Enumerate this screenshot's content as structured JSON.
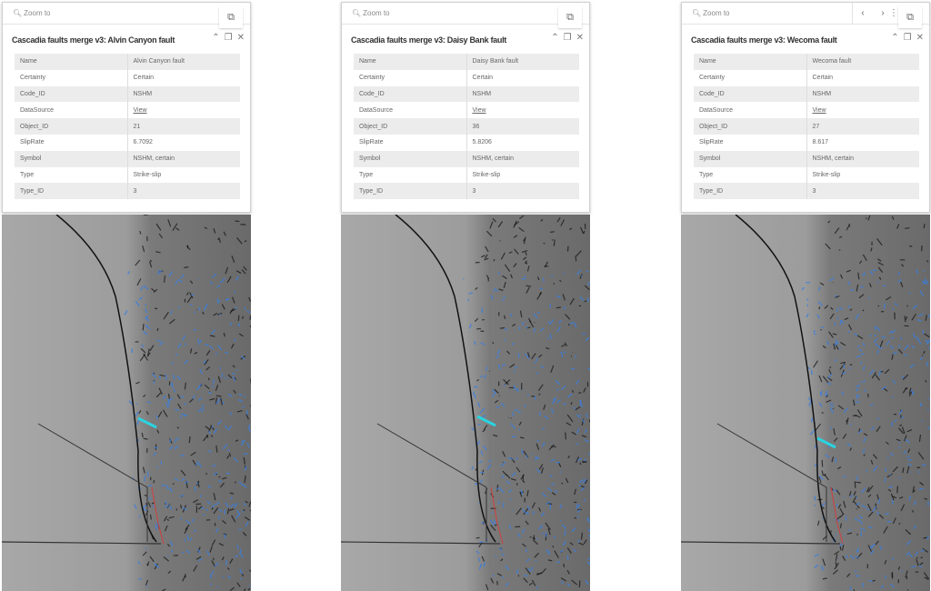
{
  "zoom_label": "Zoom to",
  "icons": {
    "zoom": "magnifier-plus-icon",
    "external": "open-external-icon",
    "collapse": "chevron-up-icon",
    "dock": "dock-icon",
    "close": "close-icon",
    "prev": "chevron-left-icon",
    "next": "chevron-right-icon",
    "more": "more-vertical-icon"
  },
  "colors": {
    "fault_selected": "#2ad4e0",
    "faults": "#3a7fe0",
    "cascadia_trench": "#111111",
    "offshore_faults": "#d04040"
  },
  "field_labels": [
    "Name",
    "Certainty",
    "Code_ID",
    "DataSource",
    "Object_ID",
    "SlipRate",
    "Symbol",
    "Type",
    "Type_ID"
  ],
  "panels": [
    {
      "title": "Cascadia faults merge v3: Alvin Canyon fault",
      "values": [
        "Alvin Canyon fault",
        "Certain",
        "NSHM",
        "View",
        "21",
        "6.7092",
        "NSHM, certain",
        "Strike-slip",
        "3"
      ],
      "has_nav": false
    },
    {
      "title": "Cascadia faults merge v3: Daisy Bank fault",
      "values": [
        "Daisy Bank fault",
        "Certain",
        "NSHM",
        "View",
        "36",
        "5.8206",
        "NSHM, certain",
        "Strike-slip",
        "3"
      ],
      "has_nav": false
    },
    {
      "title": "Cascadia faults merge v3: Wecoma fault",
      "values": [
        "Wecoma fault",
        "Certain",
        "NSHM",
        "View",
        "27",
        "8.617",
        "NSHM, certain",
        "Strike-slip",
        "3"
      ],
      "has_nav": true
    }
  ]
}
